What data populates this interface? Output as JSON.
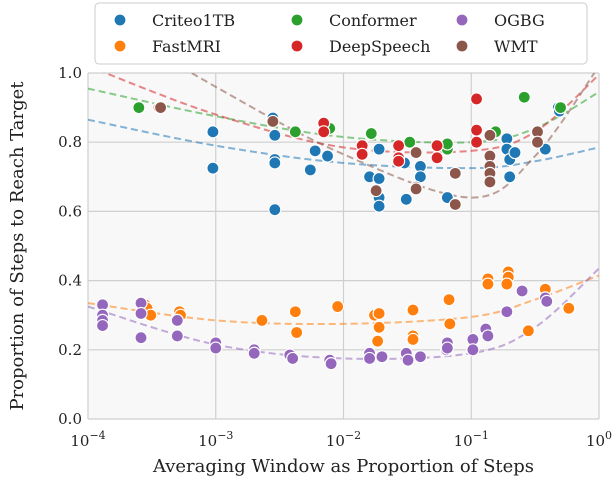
{
  "chart_data": {
    "type": "scatter",
    "xlabel": "Averaging Window as Proportion of Steps",
    "ylabel": "Proportion of Steps to Reach Target",
    "xscale": "log",
    "xlim": [
      0.0001,
      1
    ],
    "ylim": [
      0,
      1
    ],
    "x_ticks": [
      {
        "value": 0.0001,
        "base": "10",
        "exp": "−4"
      },
      {
        "value": 0.001,
        "base": "10",
        "exp": "−3"
      },
      {
        "value": 0.01,
        "base": "10",
        "exp": "−2"
      },
      {
        "value": 0.1,
        "base": "10",
        "exp": "−1"
      },
      {
        "value": 1,
        "base": "10",
        "exp": "0"
      }
    ],
    "y_ticks": [
      "0.0",
      "0.2",
      "0.4",
      "0.6",
      "0.8",
      "1.0"
    ],
    "grid": true,
    "legend_position": "top",
    "series": [
      {
        "name": "Criteo1TB",
        "color": "#1f77b4",
        "fit": [
          0.865,
          0.79,
          0.74,
          0.725,
          0.745,
          0.785
        ],
        "points": [
          [
            0.00095,
            0.83
          ],
          [
            0.00095,
            0.725
          ],
          [
            0.0028,
            0.87
          ],
          [
            0.0029,
            0.82
          ],
          [
            0.0029,
            0.75
          ],
          [
            0.0029,
            0.74
          ],
          [
            0.0029,
            0.605
          ],
          [
            0.0055,
            0.72
          ],
          [
            0.006,
            0.775
          ],
          [
            0.0075,
            0.76
          ],
          [
            0.016,
            0.7
          ],
          [
            0.019,
            0.78
          ],
          [
            0.019,
            0.695
          ],
          [
            0.019,
            0.64
          ],
          [
            0.019,
            0.615
          ],
          [
            0.03,
            0.74
          ],
          [
            0.031,
            0.635
          ],
          [
            0.04,
            0.73
          ],
          [
            0.04,
            0.7
          ],
          [
            0.065,
            0.64
          ],
          [
            0.19,
            0.81
          ],
          [
            0.19,
            0.78
          ],
          [
            0.2,
            0.75
          ],
          [
            0.2,
            0.7
          ],
          [
            0.22,
            0.77
          ],
          [
            0.38,
            0.78
          ],
          [
            0.48,
            0.9
          ],
          [
            0.49,
            0.89
          ]
        ]
      },
      {
        "name": "FastMRI",
        "color": "#ff7f0e",
        "fit": [
          0.335,
          0.285,
          0.275,
          0.295,
          0.345,
          0.415
        ],
        "points": [
          [
            0.00013,
            0.33
          ],
          [
            0.00028,
            0.33
          ],
          [
            0.00029,
            0.32
          ],
          [
            0.00031,
            0.3
          ],
          [
            0.00052,
            0.31
          ],
          [
            0.00053,
            0.3
          ],
          [
            0.0023,
            0.285
          ],
          [
            0.0042,
            0.31
          ],
          [
            0.0043,
            0.25
          ],
          [
            0.009,
            0.325
          ],
          [
            0.0175,
            0.3
          ],
          [
            0.019,
            0.305
          ],
          [
            0.019,
            0.265
          ],
          [
            0.0185,
            0.225
          ],
          [
            0.035,
            0.315
          ],
          [
            0.035,
            0.24
          ],
          [
            0.035,
            0.23
          ],
          [
            0.067,
            0.345
          ],
          [
            0.068,
            0.275
          ],
          [
            0.135,
            0.405
          ],
          [
            0.135,
            0.39
          ],
          [
            0.195,
            0.425
          ],
          [
            0.195,
            0.41
          ],
          [
            0.19,
            0.39
          ],
          [
            0.28,
            0.255
          ],
          [
            0.38,
            0.375
          ],
          [
            0.58,
            0.32
          ]
        ]
      },
      {
        "name": "Conformer",
        "color": "#2ca02c",
        "fit": [
          0.955,
          0.875,
          0.815,
          0.8,
          0.84,
          0.945
        ],
        "points": [
          [
            0.00025,
            0.9
          ],
          [
            0.0042,
            0.83
          ],
          [
            0.0078,
            0.84
          ],
          [
            0.0165,
            0.825
          ],
          [
            0.033,
            0.8
          ],
          [
            0.065,
            0.78
          ],
          [
            0.065,
            0.795
          ],
          [
            0.155,
            0.83
          ],
          [
            0.26,
            0.93
          ],
          [
            0.5,
            0.9
          ]
        ]
      },
      {
        "name": "DeepSpeech",
        "color": "#d62728",
        "fit": [
          1.02,
          0.88,
          0.785,
          0.775,
          0.83,
          0.995
        ],
        "points": [
          [
            0.00036,
            0.9
          ],
          [
            0.007,
            0.855
          ],
          [
            0.007,
            0.83
          ],
          [
            0.014,
            0.79
          ],
          [
            0.014,
            0.765
          ],
          [
            0.027,
            0.79
          ],
          [
            0.027,
            0.755
          ],
          [
            0.027,
            0.745
          ],
          [
            0.054,
            0.79
          ],
          [
            0.054,
            0.755
          ],
          [
            0.11,
            0.835
          ],
          [
            0.11,
            0.925
          ],
          [
            0.11,
            0.8
          ]
        ]
      },
      {
        "name": "OGBG",
        "color": "#9467bd",
        "fit": [
          0.325,
          0.215,
          0.175,
          0.19,
          0.265,
          0.435
        ],
        "points": [
          [
            0.00013,
            0.33
          ],
          [
            0.00013,
            0.3
          ],
          [
            0.00013,
            0.285
          ],
          [
            0.00013,
            0.27
          ],
          [
            0.00026,
            0.335
          ],
          [
            0.00026,
            0.305
          ],
          [
            0.00026,
            0.235
          ],
          [
            0.0005,
            0.285
          ],
          [
            0.0005,
            0.24
          ],
          [
            0.001,
            0.22
          ],
          [
            0.001,
            0.205
          ],
          [
            0.002,
            0.2
          ],
          [
            0.002,
            0.19
          ],
          [
            0.0038,
            0.185
          ],
          [
            0.004,
            0.175
          ],
          [
            0.0078,
            0.17
          ],
          [
            0.008,
            0.16
          ],
          [
            0.016,
            0.19
          ],
          [
            0.016,
            0.175
          ],
          [
            0.02,
            0.18
          ],
          [
            0.031,
            0.19
          ],
          [
            0.032,
            0.17
          ],
          [
            0.04,
            0.18
          ],
          [
            0.064,
            0.2
          ],
          [
            0.065,
            0.22
          ],
          [
            0.065,
            0.205
          ],
          [
            0.103,
            0.23
          ],
          [
            0.103,
            0.2
          ],
          [
            0.13,
            0.26
          ],
          [
            0.135,
            0.24
          ],
          [
            0.19,
            0.31
          ],
          [
            0.25,
            0.37
          ],
          [
            0.38,
            0.35
          ],
          [
            0.39,
            0.34
          ]
        ]
      },
      {
        "name": "WMT",
        "color": "#8c564b",
        "fit": [
          1.18,
          0.96,
          0.765,
          0.64,
          0.76,
          1.02
        ],
        "points": [
          [
            0.00037,
            0.9
          ],
          [
            0.0028,
            0.86
          ],
          [
            0.018,
            0.66
          ],
          [
            0.037,
            0.77
          ],
          [
            0.037,
            0.67
          ],
          [
            0.037,
            0.665
          ],
          [
            0.075,
            0.62
          ],
          [
            0.075,
            0.71
          ],
          [
            0.14,
            0.82
          ],
          [
            0.14,
            0.76
          ],
          [
            0.14,
            0.73
          ],
          [
            0.14,
            0.71
          ],
          [
            0.14,
            0.685
          ],
          [
            0.33,
            0.83
          ],
          [
            0.33,
            0.8
          ]
        ]
      }
    ]
  }
}
